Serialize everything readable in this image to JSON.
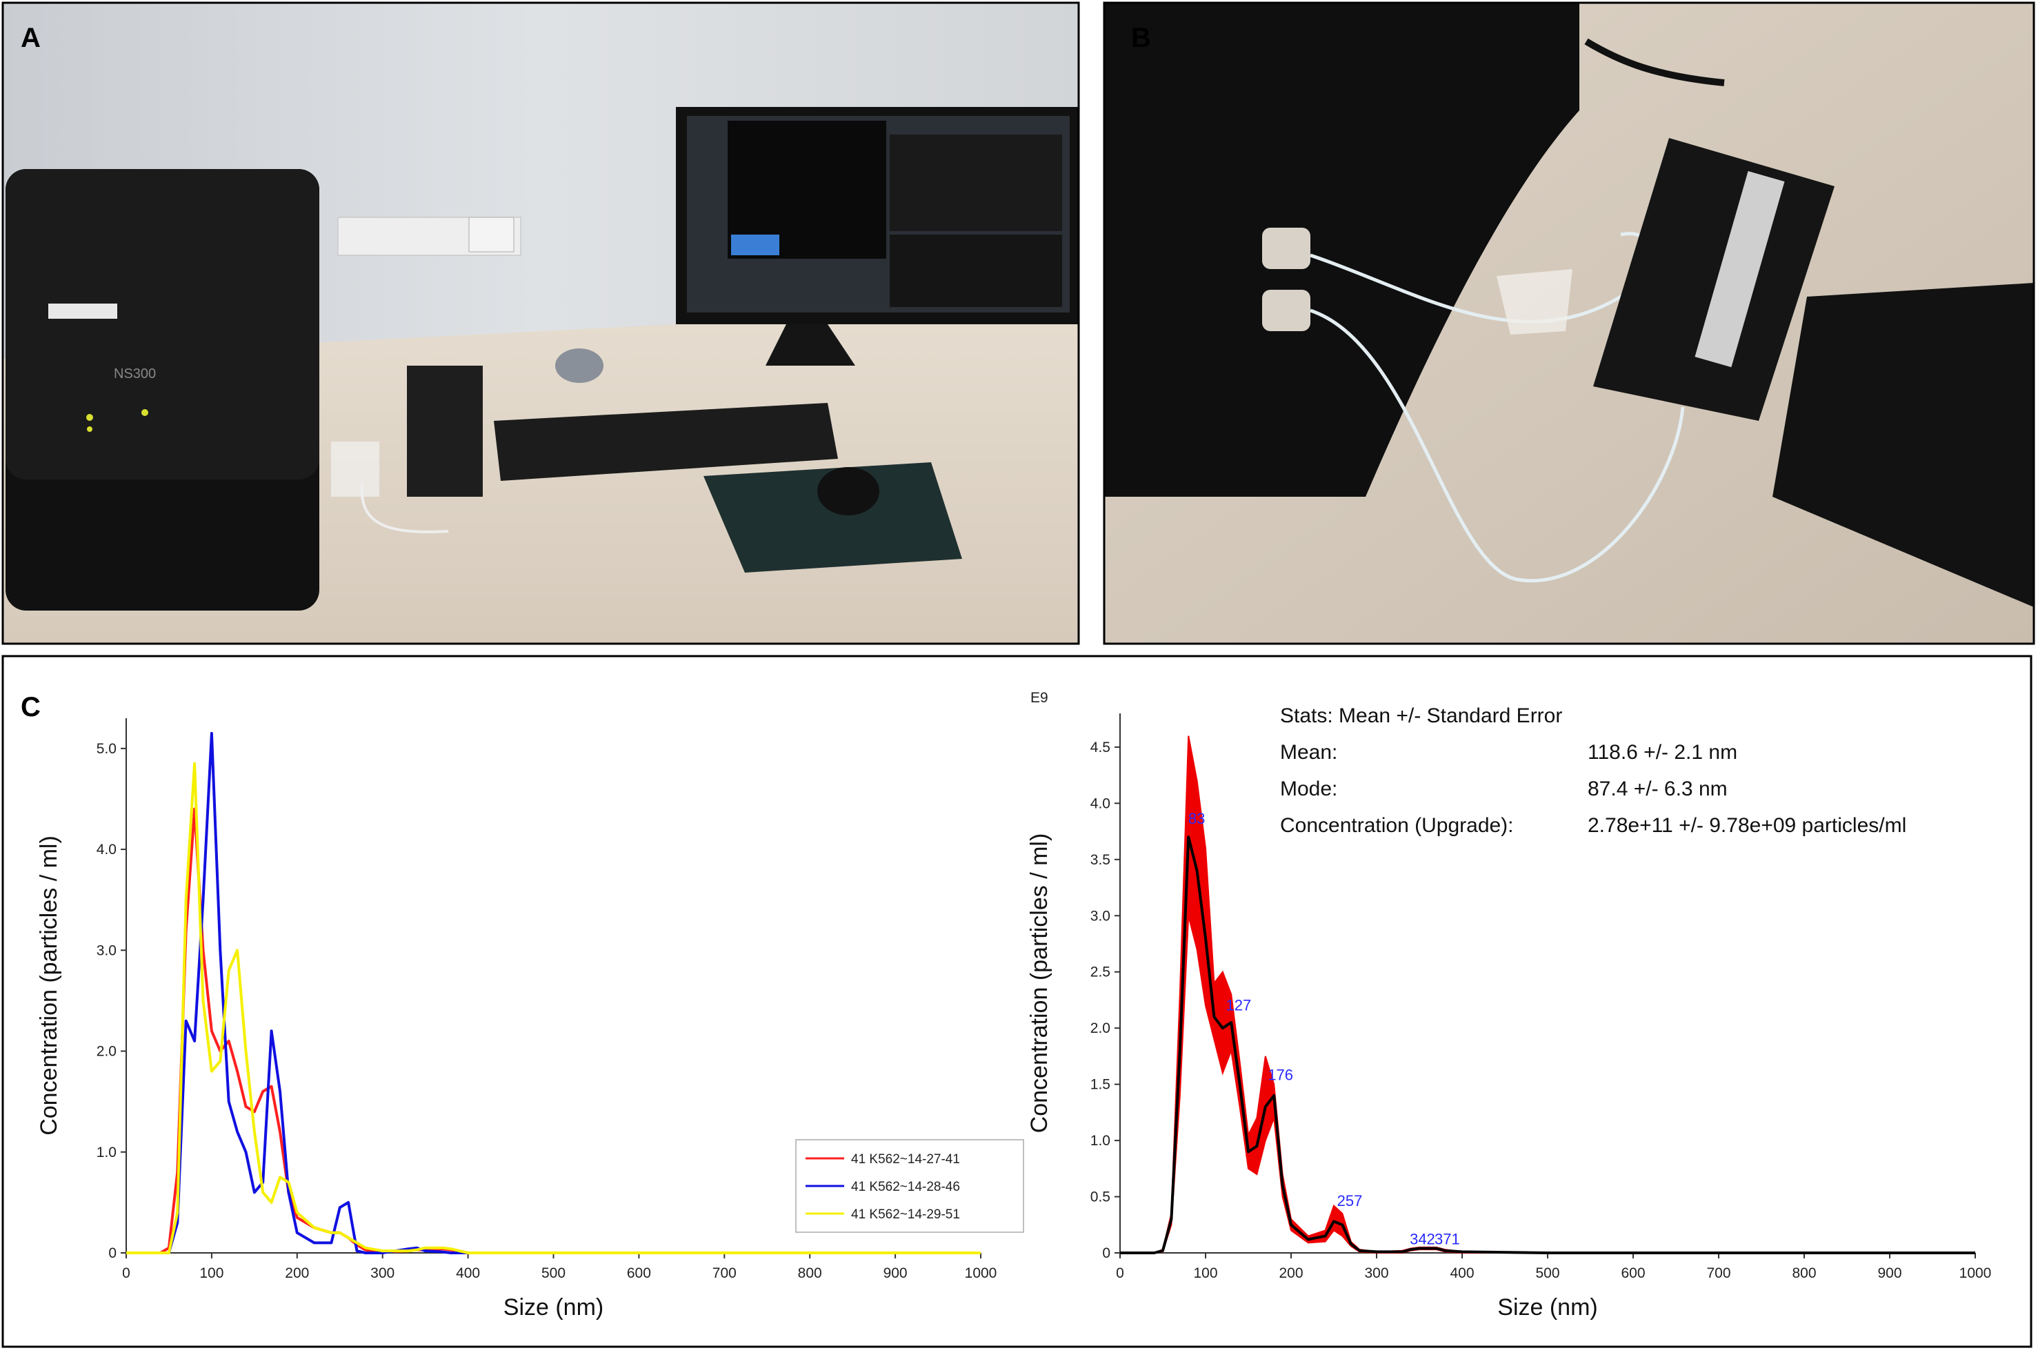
{
  "panels": {
    "a": {
      "label": "A",
      "instrument_label": "NS300"
    },
    "b": {
      "label": "B"
    },
    "c": {
      "label": "C"
    }
  },
  "chart_data": [
    {
      "type": "line",
      "x_label": "Size (nm)",
      "y_label": "Concentration (particles / ml)",
      "x": [
        0,
        40,
        50,
        60,
        70,
        80,
        90,
        100,
        110,
        120,
        130,
        140,
        150,
        160,
        170,
        180,
        190,
        200,
        220,
        240,
        250,
        260,
        270,
        280,
        300,
        330,
        340,
        350,
        370,
        380,
        400,
        500,
        1000
      ],
      "series": [
        {
          "name": "41 K562~14-27-41",
          "color": "#ff2020",
          "values": [
            0,
            0,
            0.05,
            0.8,
            3.2,
            4.4,
            3.0,
            2.2,
            2.0,
            2.1,
            1.8,
            1.45,
            1.4,
            1.6,
            1.65,
            1.2,
            0.6,
            0.35,
            0.25,
            0.2,
            0.2,
            0.15,
            0.08,
            0.03,
            0.01,
            0.02,
            0.03,
            0.03,
            0.04,
            0.03,
            0,
            0,
            0
          ]
        },
        {
          "name": "41 K562~14-28-46",
          "color": "#1010e0",
          "values": [
            0,
            0,
            0,
            0.3,
            2.3,
            2.1,
            3.5,
            5.15,
            3.0,
            1.5,
            1.2,
            1.0,
            0.6,
            0.7,
            2.2,
            1.6,
            0.6,
            0.2,
            0.1,
            0.1,
            0.45,
            0.5,
            0.02,
            0,
            0,
            0.04,
            0.05,
            0.02,
            0.01,
            0,
            0,
            0,
            0
          ]
        },
        {
          "name": "41 K562~14-29-51",
          "color": "#f5f000",
          "values": [
            0,
            0,
            0,
            0.4,
            3.5,
            4.85,
            2.5,
            1.8,
            1.9,
            2.8,
            3.0,
            2.0,
            1.2,
            0.6,
            0.5,
            0.75,
            0.7,
            0.4,
            0.25,
            0.2,
            0.2,
            0.15,
            0.1,
            0.05,
            0.02,
            0.02,
            0.03,
            0.05,
            0.05,
            0.04,
            0,
            0,
            0
          ]
        }
      ],
      "xlim": [
        0,
        1000
      ],
      "xticks": [
        0,
        100,
        200,
        300,
        400,
        500,
        600,
        700,
        800,
        900,
        1000
      ],
      "ylim": [
        0,
        5.3
      ],
      "yticks": [
        0,
        {
          "value": 1,
          "label": "1.0"
        },
        {
          "value": 2,
          "label": "2.0"
        },
        {
          "value": 3,
          "label": "3.0"
        },
        {
          "value": 4,
          "label": "4.0"
        },
        {
          "value": 5,
          "label": "5.0"
        }
      ],
      "legend": "lower right"
    },
    {
      "type": "line",
      "x_label": "Size (nm)",
      "y_label": "Concentration (particles / ml)",
      "y_exponent": "E9",
      "x": [
        0,
        40,
        50,
        60,
        70,
        80,
        90,
        100,
        110,
        120,
        130,
        140,
        150,
        160,
        170,
        180,
        190,
        200,
        220,
        240,
        250,
        260,
        270,
        280,
        300,
        330,
        340,
        350,
        370,
        380,
        400,
        500,
        1000
      ],
      "series": [
        {
          "color": "#000000",
          "values": [
            0,
            0,
            0.02,
            0.3,
            1.8,
            3.7,
            3.4,
            2.8,
            2.1,
            2.0,
            2.05,
            1.5,
            0.9,
            0.95,
            1.3,
            1.4,
            0.6,
            0.25,
            0.12,
            0.15,
            0.28,
            0.25,
            0.08,
            0.02,
            0.01,
            0.01,
            0.03,
            0.04,
            0.04,
            0.02,
            0.01,
            0,
            0
          ]
        }
      ],
      "band": {
        "color": "#ee0000",
        "upper": [
          0,
          0,
          0.03,
          0.35,
          2.3,
          4.6,
          4.2,
          3.6,
          2.4,
          2.5,
          2.3,
          1.7,
          1.05,
          1.2,
          1.75,
          1.5,
          0.7,
          0.3,
          0.15,
          0.2,
          0.42,
          0.35,
          0.1,
          0.03,
          0.01,
          0.02,
          0.04,
          0.05,
          0.05,
          0.03,
          0.01,
          0,
          0
        ],
        "lower": [
          0,
          0,
          0.01,
          0.25,
          1.4,
          3.0,
          2.7,
          2.2,
          1.9,
          1.6,
          1.8,
          1.3,
          0.75,
          0.7,
          1.0,
          1.2,
          0.5,
          0.2,
          0.09,
          0.1,
          0.2,
          0.15,
          0.06,
          0.01,
          0,
          0,
          0.02,
          0.03,
          0.03,
          0.01,
          0,
          0,
          0
        ]
      },
      "annotations": [
        {
          "text": "83",
          "x": 83,
          "y": 3.78
        },
        {
          "text": "127",
          "x": 127,
          "y": 2.12
        },
        {
          "text": "176",
          "x": 176,
          "y": 1.5
        },
        {
          "text": "257",
          "x": 257,
          "y": 0.38
        },
        {
          "text": "342",
          "x": 342,
          "y": 0.04
        },
        {
          "text": "371",
          "x": 371,
          "y": 0.04
        }
      ],
      "stats": [
        [
          "Stats: Mean +/- Standard Error"
        ],
        [
          "Mean:",
          "118.6 +/- 2.1 nm"
        ],
        [
          "Mode:",
          "87.4 +/- 6.3 nm"
        ],
        [
          "Concentration (Upgrade):",
          "2.78e+11 +/- 9.78e+09 particles/ml"
        ]
      ],
      "xlim": [
        0,
        1000
      ],
      "xticks": [
        0,
        100,
        200,
        300,
        400,
        500,
        600,
        700,
        800,
        900,
        1000
      ],
      "ylim": [
        0,
        4.8
      ],
      "yticks": [
        0,
        0.5,
        {
          "value": 1,
          "label": "1.0"
        },
        1.5,
        {
          "value": 2,
          "label": "2.0"
        },
        2.5,
        {
          "value": 3,
          "label": "3.0"
        },
        3.5,
        {
          "value": 4,
          "label": "4.0"
        },
        4.5
      ]
    }
  ]
}
